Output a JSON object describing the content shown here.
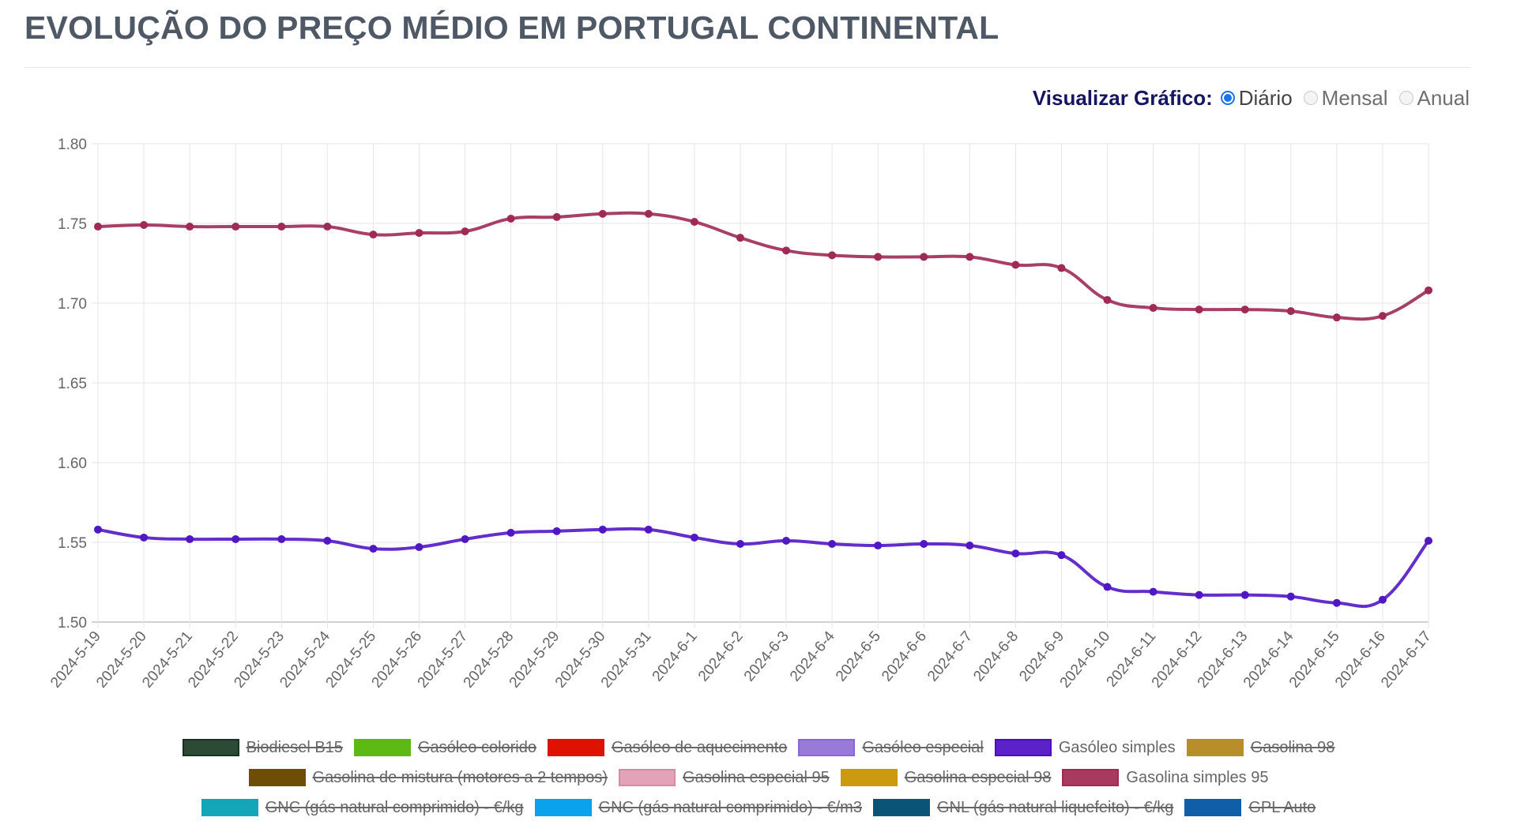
{
  "page": {
    "title": "EVOLUÇÃO DO PREÇO MÉDIO EM PORTUGAL CONTINENTAL"
  },
  "controls": {
    "label": "Visualizar Gráfico:",
    "options": [
      {
        "label": "Diário",
        "checked": true
      },
      {
        "label": "Mensal",
        "checked": false
      },
      {
        "label": "Anual",
        "checked": false
      }
    ]
  },
  "chart_data": {
    "type": "line",
    "title": "EVOLUÇÃO DO PREÇO MÉDIO EM PORTUGAL CONTINENTAL",
    "xlabel": "",
    "ylabel": "",
    "ylim": [
      1.5,
      1.8
    ],
    "yticks": [
      "1.80",
      "1.75",
      "1.70",
      "1.65",
      "1.60",
      "1.55",
      "1.50"
    ],
    "ytick_values": [
      1.8,
      1.75,
      1.7,
      1.65,
      1.6,
      1.55,
      1.5
    ],
    "grid": true,
    "legend_position": "bottom",
    "categories": [
      "2024-5-19",
      "2024-5-20",
      "2024-5-21",
      "2024-5-22",
      "2024-5-23",
      "2024-5-24",
      "2024-5-25",
      "2024-5-26",
      "2024-5-27",
      "2024-5-28",
      "2024-5-29",
      "2024-5-30",
      "2024-5-31",
      "2024-6-1",
      "2024-6-2",
      "2024-6-3",
      "2024-6-4",
      "2024-6-5",
      "2024-6-6",
      "2024-6-7",
      "2024-6-8",
      "2024-6-9",
      "2024-6-10",
      "2024-6-11",
      "2024-6-12",
      "2024-6-13",
      "2024-6-14",
      "2024-6-15",
      "2024-6-16",
      "2024-6-17"
    ],
    "series": [
      {
        "name": "Gasolina simples 95",
        "color": "#9e2a55",
        "values": [
          1.748,
          1.749,
          1.748,
          1.748,
          1.748,
          1.748,
          1.743,
          1.744,
          1.745,
          1.753,
          1.754,
          1.756,
          1.756,
          1.751,
          1.741,
          1.733,
          1.73,
          1.729,
          1.729,
          1.729,
          1.724,
          1.722,
          1.702,
          1.697,
          1.696,
          1.696,
          1.695,
          1.691,
          1.692,
          1.708
        ]
      },
      {
        "name": "Gasóleo simples",
        "color": "#5217c4",
        "values": [
          1.558,
          1.553,
          1.552,
          1.552,
          1.552,
          1.551,
          1.546,
          1.547,
          1.552,
          1.556,
          1.557,
          1.558,
          1.558,
          1.553,
          1.549,
          1.551,
          1.549,
          1.548,
          1.549,
          1.548,
          1.543,
          1.542,
          1.522,
          1.519,
          1.517,
          1.517,
          1.516,
          1.512,
          1.514,
          1.551
        ]
      }
    ],
    "legend": [
      [
        {
          "name": "Biodiesel B15",
          "fill": "#2d4a36",
          "border": "#173021",
          "hidden": true
        },
        {
          "name": "Gasóleo colorido",
          "fill": "#5cb812",
          "border": "#5cb812",
          "hidden": true
        },
        {
          "name": "Gasóleo de aquecimento",
          "fill": "#df1202",
          "border": "#df1202",
          "hidden": true
        },
        {
          "name": "Gasóleo especial",
          "fill": "#9a7ad8",
          "border": "#8a66d2",
          "hidden": true
        },
        {
          "name": "Gasóleo simples",
          "fill": "#5a22c8",
          "border": "#4a10c0",
          "hidden": false
        },
        {
          "name": "Gasolina 98",
          "fill": "#b88e2a",
          "border": "#b88e2a",
          "hidden": true
        }
      ],
      [
        {
          "name": "Gasolina de mistura (motores a 2 tempos)",
          "fill": "#6e4e05",
          "border": "#6e4e05",
          "hidden": true
        },
        {
          "name": "Gasolina especial 95",
          "fill": "#e2a2b8",
          "border": "#d68aa4",
          "hidden": true
        },
        {
          "name": "Gasolina especial 98",
          "fill": "#cb9a0e",
          "border": "#cb9a0e",
          "hidden": true
        },
        {
          "name": "Gasolina simples 95",
          "fill": "#a83a60",
          "border": "#9e2a55",
          "hidden": false
        }
      ],
      [
        {
          "name": "GNC (gás natural comprimido) - €/kg",
          "fill": "#12a6b8",
          "border": "#12a6b8",
          "hidden": true
        },
        {
          "name": "GNC (gás natural comprimido) - €/m3",
          "fill": "#0aa2ec",
          "border": "#0aa2ec",
          "hidden": true
        },
        {
          "name": "GNL (gás natural liquefeito) - €/kg",
          "fill": "#0a5478",
          "border": "#0a5478",
          "hidden": true
        },
        {
          "name": "GPL Auto",
          "fill": "#115ea8",
          "border": "#115ea8",
          "hidden": true
        }
      ]
    ]
  }
}
